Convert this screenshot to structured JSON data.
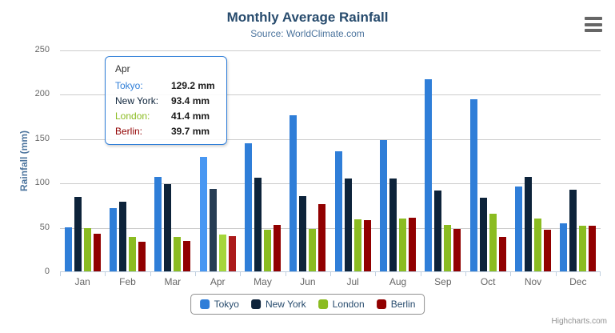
{
  "chart": {
    "title": "Monthly Average Rainfall",
    "subtitle": "Source: WorldClimate.com",
    "y_axis_title": "Rainfall (mm)",
    "credits": "Highcharts.com"
  },
  "colors": {
    "title_text": "#274b6d",
    "subtitle_text": "#4d759e",
    "axis_label_text": "#666666",
    "gridline": "#cccccc",
    "axis_line": "#c0d0e0",
    "legend_border": "#909090",
    "tooltip_border": "#2f7ed8",
    "credits_text": "#909090"
  },
  "chart_data": {
    "type": "bar",
    "orientation": "vertical",
    "title": "Monthly Average Rainfall",
    "subtitle": "Source: WorldClimate.com",
    "xlabel": "",
    "ylabel": "Rainfall (mm)",
    "ylim": [
      0,
      250
    ],
    "tick_interval": 50,
    "grid": true,
    "legend_position": "bottom",
    "categories": [
      "Jan",
      "Feb",
      "Mar",
      "Apr",
      "May",
      "Jun",
      "Jul",
      "Aug",
      "Sep",
      "Oct",
      "Nov",
      "Dec"
    ],
    "hovered_category_index": 3,
    "series": [
      {
        "name": "Tokyo",
        "color": "#2f7ed8",
        "hover_color": "#4897f2",
        "values": [
          49.9,
          71.5,
          106.4,
          129.2,
          144.0,
          176.0,
          135.6,
          148.5,
          216.4,
          194.1,
          95.6,
          54.4
        ]
      },
      {
        "name": "New York",
        "color": "#0d233a",
        "hover_color": "#273d54",
        "values": [
          83.6,
          78.8,
          98.5,
          93.4,
          106.0,
          84.5,
          105.0,
          104.3,
          91.2,
          83.5,
          106.6,
          92.3
        ]
      },
      {
        "name": "London",
        "color": "#8bbc21",
        "hover_color": "#a5d63b",
        "values": [
          48.9,
          38.8,
          39.3,
          41.4,
          47.0,
          48.3,
          59.0,
          59.6,
          52.4,
          65.2,
          59.3,
          51.2
        ]
      },
      {
        "name": "Berlin",
        "color": "#910000",
        "hover_color": "#ab1a1a",
        "values": [
          42.4,
          33.2,
          34.5,
          39.7,
          52.6,
          75.5,
          57.4,
          60.4,
          47.6,
          39.1,
          46.8,
          51.1
        ]
      }
    ]
  },
  "tooltip": {
    "header": "Apr",
    "rows": [
      {
        "label": "Tokyo:",
        "value": "129.2 mm"
      },
      {
        "label": "New York:",
        "value": "93.4 mm"
      },
      {
        "label": "London:",
        "value": "41.4 mm"
      },
      {
        "label": "Berlin:",
        "value": "39.7 mm"
      }
    ]
  }
}
